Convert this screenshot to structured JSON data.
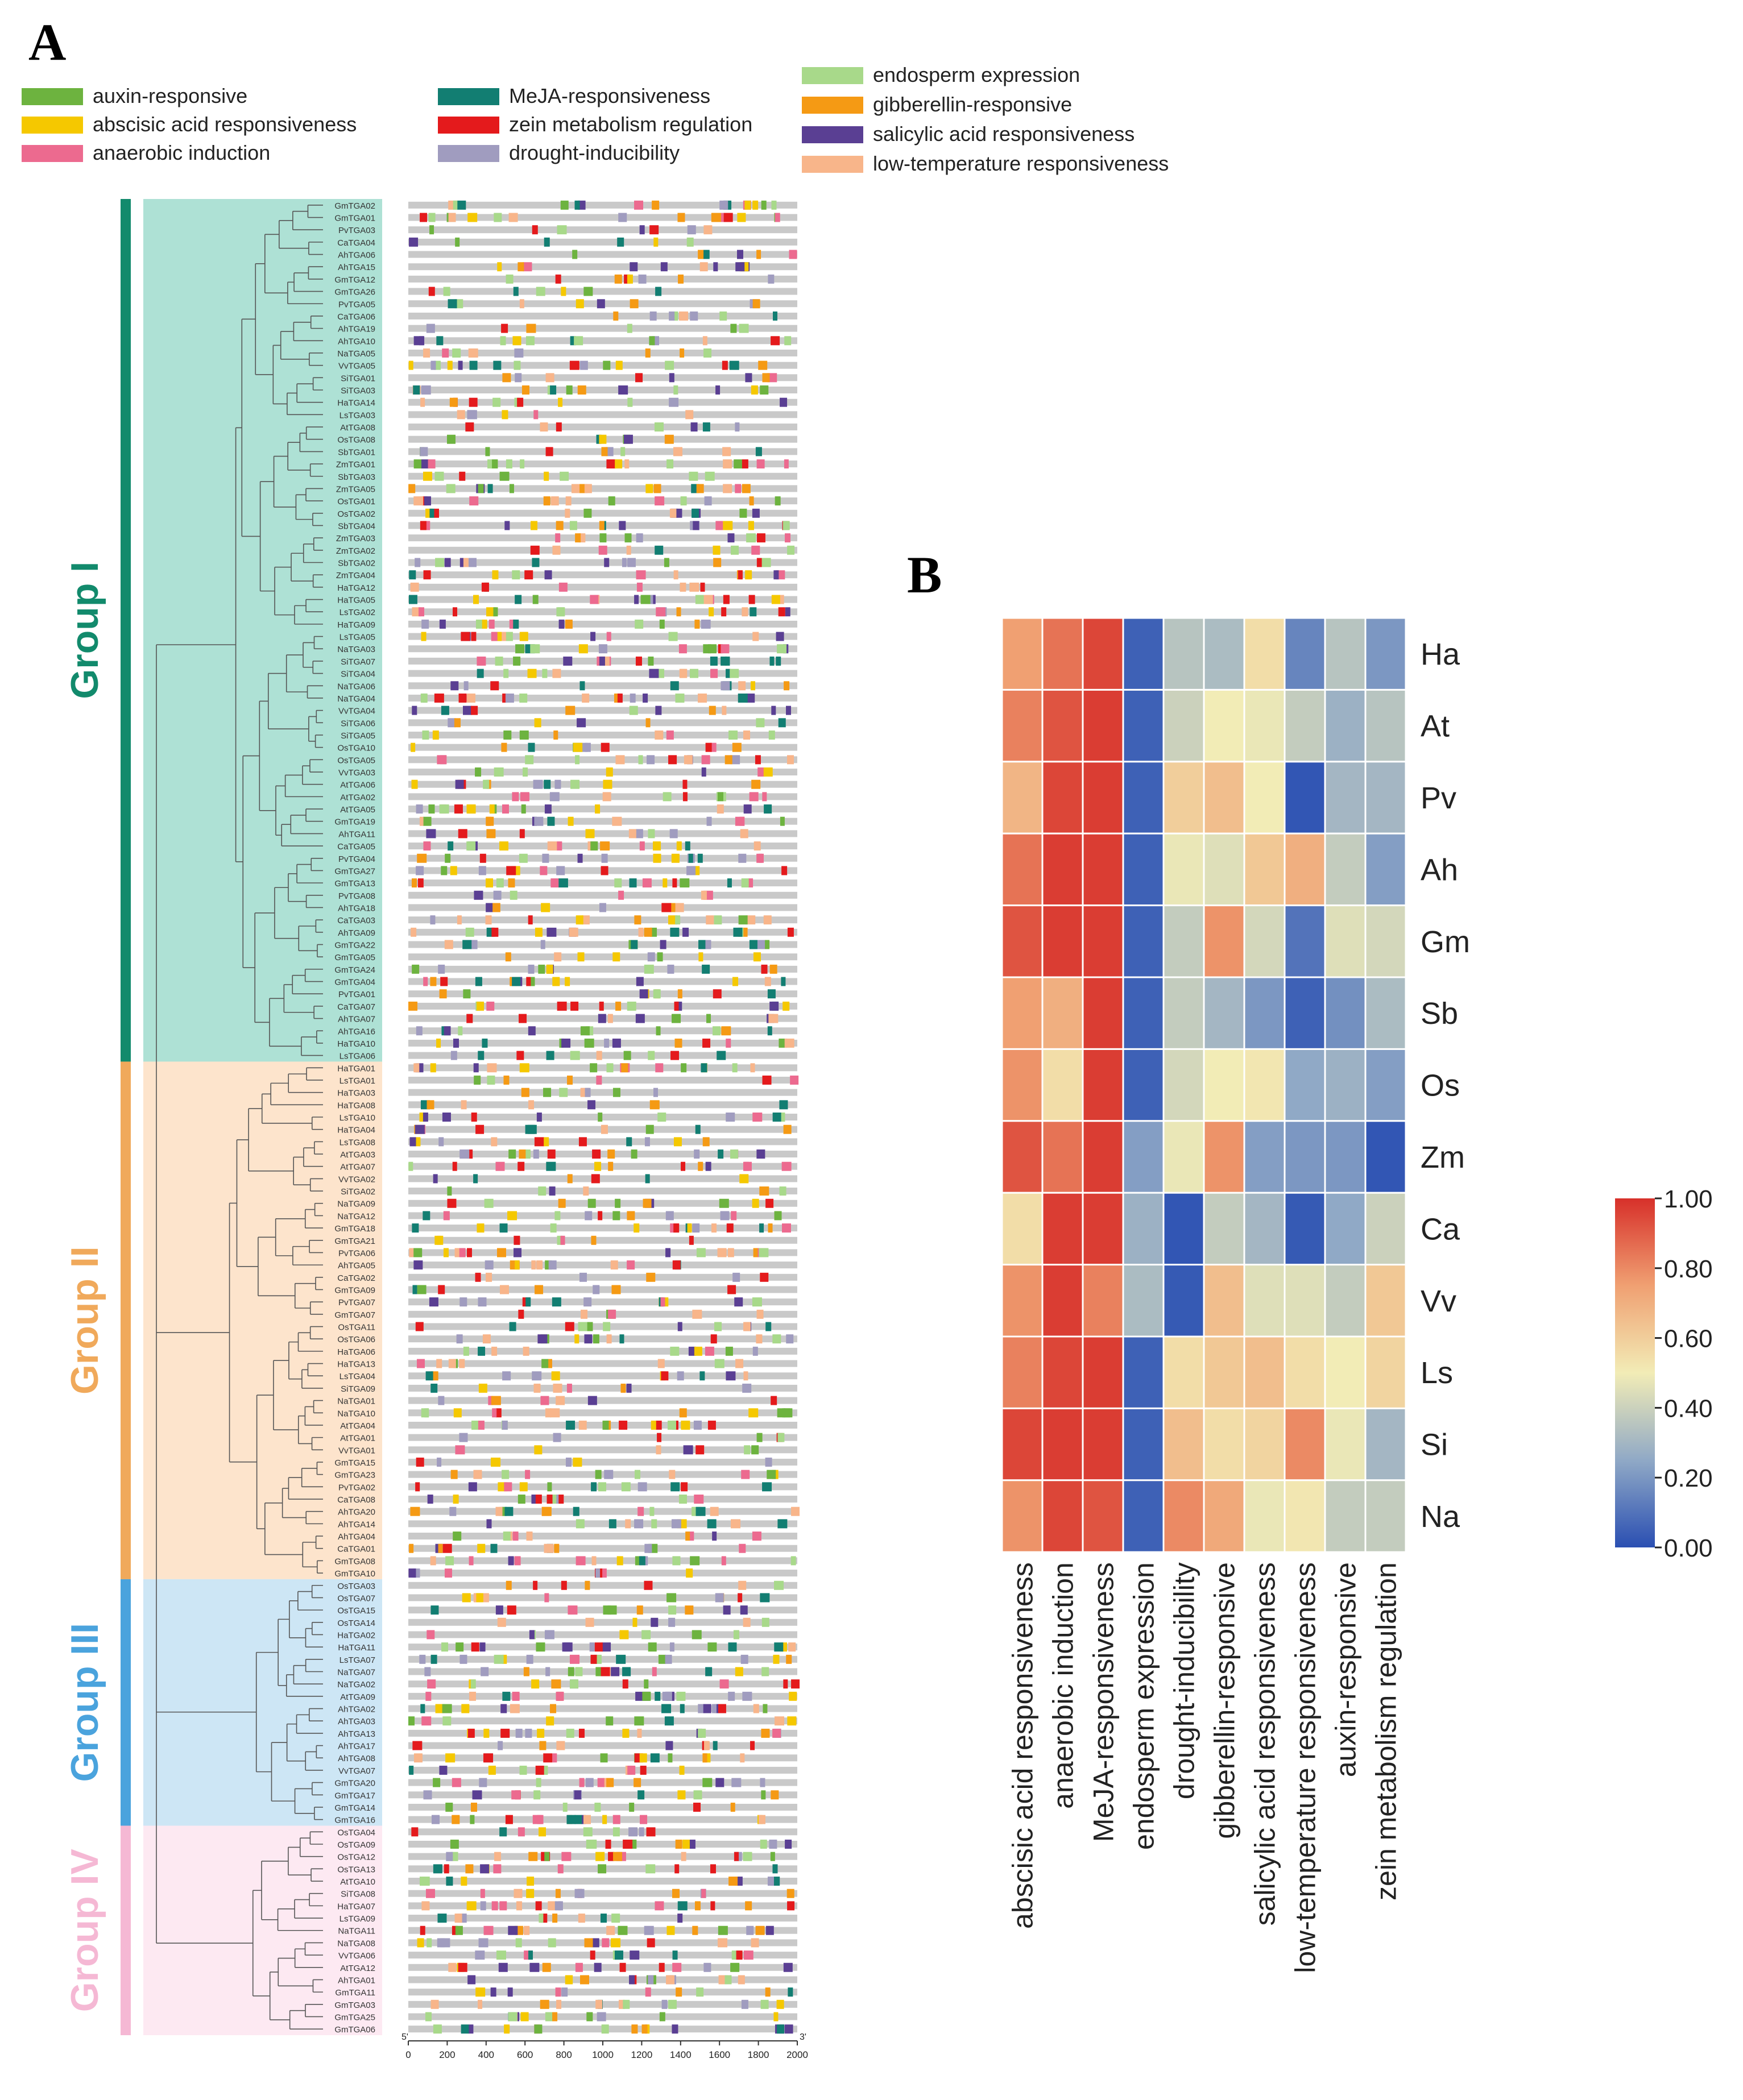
{
  "panel_labels": {
    "a": "A",
    "b": "B"
  },
  "legend": [
    {
      "label": "auxin-responsive",
      "color": "#6db33f"
    },
    {
      "label": "abscisic acid responsiveness",
      "color": "#f5c800"
    },
    {
      "label": "anaerobic induction",
      "color": "#ec6a8f"
    },
    {
      "label": "MeJA-responsiveness",
      "color": "#127e72"
    },
    {
      "label": "zein metabolism regulation",
      "color": "#e41a1c"
    },
    {
      "label": "drought-inducibility",
      "color": "#a09cbf"
    },
    {
      "label": "endosperm expression",
      "color": "#a8d98a"
    },
    {
      "label": "gibberellin-responsive",
      "color": "#f59a14"
    },
    {
      "label": "salicylic acid responsiveness",
      "color": "#5a3f93"
    },
    {
      "label": "low-temperature responsiveness",
      "color": "#f8b58a"
    }
  ],
  "groups": [
    {
      "name": "Group I",
      "color": "#128a6c",
      "bg": "#aee1d5",
      "count": 70
    },
    {
      "name": "Group II",
      "color": "#f0a95b",
      "bg": "#fde4cc",
      "count": 42
    },
    {
      "name": "Group III",
      "color": "#4aa3dd",
      "bg": "#cde6f5",
      "count": 20
    },
    {
      "name": "Group IV",
      "color": "#f5b8d4",
      "bg": "#fde9f2",
      "count": 17
    }
  ],
  "genes": [
    "GmTGA02",
    "GmTGA01",
    "PvTGA03",
    "CaTGA04",
    "AhTGA06",
    "AhTGA15",
    "GmTGA12",
    "GmTGA26",
    "PvTGA05",
    "CaTGA06",
    "AhTGA19",
    "AhTGA10",
    "NaTGA05",
    "VvTGA05",
    "SiTGA01",
    "SiTGA03",
    "HaTGA14",
    "LsTGA03",
    "AtTGA08",
    "OsTGA08",
    "SbTGA01",
    "ZmTGA01",
    "SbTGA03",
    "ZmTGA05",
    "OsTGA01",
    "OsTGA02",
    "SbTGA04",
    "ZmTGA03",
    "ZmTGA02",
    "SbTGA02",
    "ZmTGA04",
    "HaTGA12",
    "HaTGA05",
    "LsTGA02",
    "HaTGA09",
    "LsTGA05",
    "NaTGA03",
    "SiTGA07",
    "SiTGA04",
    "NaTGA06",
    "NaTGA04",
    "VvTGA04",
    "SiTGA06",
    "SiTGA05",
    "OsTGA10",
    "OsTGA05",
    "VvTGA03",
    "AtTGA06",
    "AtTGA02",
    "AtTGA05",
    "GmTGA19",
    "AhTGA11",
    "CaTGA05",
    "PvTGA04",
    "GmTGA27",
    "GmTGA13",
    "PvTGA08",
    "AhTGA18",
    "CaTGA03",
    "AhTGA09",
    "GmTGA22",
    "GmTGA05",
    "GmTGA24",
    "GmTGA04",
    "PvTGA01",
    "CaTGA07",
    "AhTGA07",
    "AhTGA16",
    "HaTGA10",
    "LsTGA06",
    "HaTGA01",
    "LsTGA01",
    "HaTGA03",
    "HaTGA08",
    "LsTGA10",
    "HaTGA04",
    "LsTGA08",
    "AtTGA03",
    "AtTGA07",
    "VvTGA02",
    "SiTGA02",
    "NaTGA09",
    "NaTGA12",
    "GmTGA18",
    "GmTGA21",
    "PvTGA06",
    "AhTGA05",
    "CaTGA02",
    "GmTGA09",
    "PvTGA07",
    "GmTGA07",
    "OsTGA11",
    "OsTGA06",
    "HaTGA06",
    "HaTGA13",
    "LsTGA04",
    "SiTGA09",
    "NaTGA01",
    "NaTGA10",
    "AtTGA04",
    "AtTGA01",
    "VvTGA01",
    "GmTGA15",
    "GmTGA23",
    "PvTGA02",
    "CaTGA08",
    "AhTGA20",
    "AhTGA14",
    "AhTGA04",
    "CaTGA01",
    "GmTGA08",
    "GmTGA10",
    "OsTGA03",
    "OsTGA07",
    "OsTGA15",
    "OsTGA14",
    "HaTGA02",
    "HaTGA11",
    "LsTGA07",
    "NaTGA07",
    "NaTGA02",
    "AtTGA09",
    "AhTGA02",
    "AhTGA03",
    "AhTGA13",
    "AhTGA17",
    "AhTGA08",
    "VvTGA07",
    "GmTGA20",
    "GmTGA17",
    "GmTGA14",
    "GmTGA16",
    "OsTGA04",
    "OsTGA09",
    "OsTGA12",
    "OsTGA13",
    "AtTGA10",
    "SiTGA08",
    "HaTGA07",
    "LsTGA09",
    "NaTGA11",
    "NaTGA08",
    "VvTGA06",
    "AtTGA12",
    "AhTGA01",
    "GmTGA11",
    "GmTGA03",
    "GmTGA25",
    "GmTGA06"
  ],
  "promoter_axis": {
    "ticks": [
      "0",
      "200",
      "400",
      "600",
      "800",
      "1000",
      "1200",
      "1400",
      "1600",
      "1800",
      "2000"
    ],
    "five_prime": "5'",
    "three_prime": "3'",
    "range": [
      0,
      2000
    ]
  },
  "chart_data": {
    "type": "heatmap",
    "title": "",
    "rows": [
      "Ha",
      "At",
      "Pv",
      "Ah",
      "Gm",
      "Sb",
      "Os",
      "Zm",
      "Ca",
      "Vv",
      "Ls",
      "Si",
      "Na"
    ],
    "columns": [
      "abscisic acid responsiveness",
      "anaerobic induction",
      "MeJA-responsiveness",
      "endosperm expression",
      "drought-inducibility",
      "gibberellin-responsive",
      "salicylic acid responsiveness",
      "low-temperature responsiveness",
      "auxin-responsive",
      "zein metabolism regulation"
    ],
    "values": [
      [
        0.75,
        0.85,
        0.95,
        0.05,
        0.35,
        0.32,
        0.55,
        0.15,
        0.35,
        0.2
      ],
      [
        0.82,
        0.92,
        0.97,
        0.05,
        0.4,
        0.5,
        0.48,
        0.38,
        0.28,
        0.35
      ],
      [
        0.68,
        0.95,
        0.97,
        0.05,
        0.6,
        0.65,
        0.5,
        0.02,
        0.3,
        0.3
      ],
      [
        0.85,
        0.97,
        0.97,
        0.05,
        0.48,
        0.45,
        0.62,
        0.7,
        0.38,
        0.22
      ],
      [
        0.92,
        0.97,
        0.97,
        0.05,
        0.38,
        0.78,
        0.42,
        0.1,
        0.45,
        0.42
      ],
      [
        0.75,
        0.7,
        0.97,
        0.05,
        0.38,
        0.3,
        0.2,
        0.05,
        0.18,
        0.32
      ],
      [
        0.78,
        0.55,
        0.97,
        0.05,
        0.42,
        0.5,
        0.52,
        0.25,
        0.28,
        0.22
      ],
      [
        0.92,
        0.85,
        0.97,
        0.22,
        0.48,
        0.78,
        0.22,
        0.2,
        0.2,
        0.02
      ],
      [
        0.55,
        0.97,
        0.97,
        0.28,
        0.02,
        0.38,
        0.3,
        0.03,
        0.25,
        0.4
      ],
      [
        0.78,
        0.97,
        0.82,
        0.32,
        0.03,
        0.65,
        0.45,
        0.45,
        0.38,
        0.62
      ],
      [
        0.82,
        0.95,
        0.97,
        0.05,
        0.55,
        0.62,
        0.65,
        0.55,
        0.5,
        0.58
      ],
      [
        0.95,
        0.97,
        0.97,
        0.05,
        0.65,
        0.55,
        0.58,
        0.8,
        0.48,
        0.3
      ],
      [
        0.78,
        0.95,
        0.92,
        0.05,
        0.8,
        0.72,
        0.48,
        0.52,
        0.38,
        0.38
      ]
    ],
    "colorbar": {
      "min": 0.0,
      "max": 1.0,
      "ticks": [
        "0.00",
        "0.20",
        "0.40",
        "0.60",
        "0.80",
        "1.00"
      ]
    },
    "colorscale": [
      "#2a4fb2",
      "#90a9c6",
      "#f2ecb6",
      "#f0a072",
      "#d7302a"
    ]
  }
}
